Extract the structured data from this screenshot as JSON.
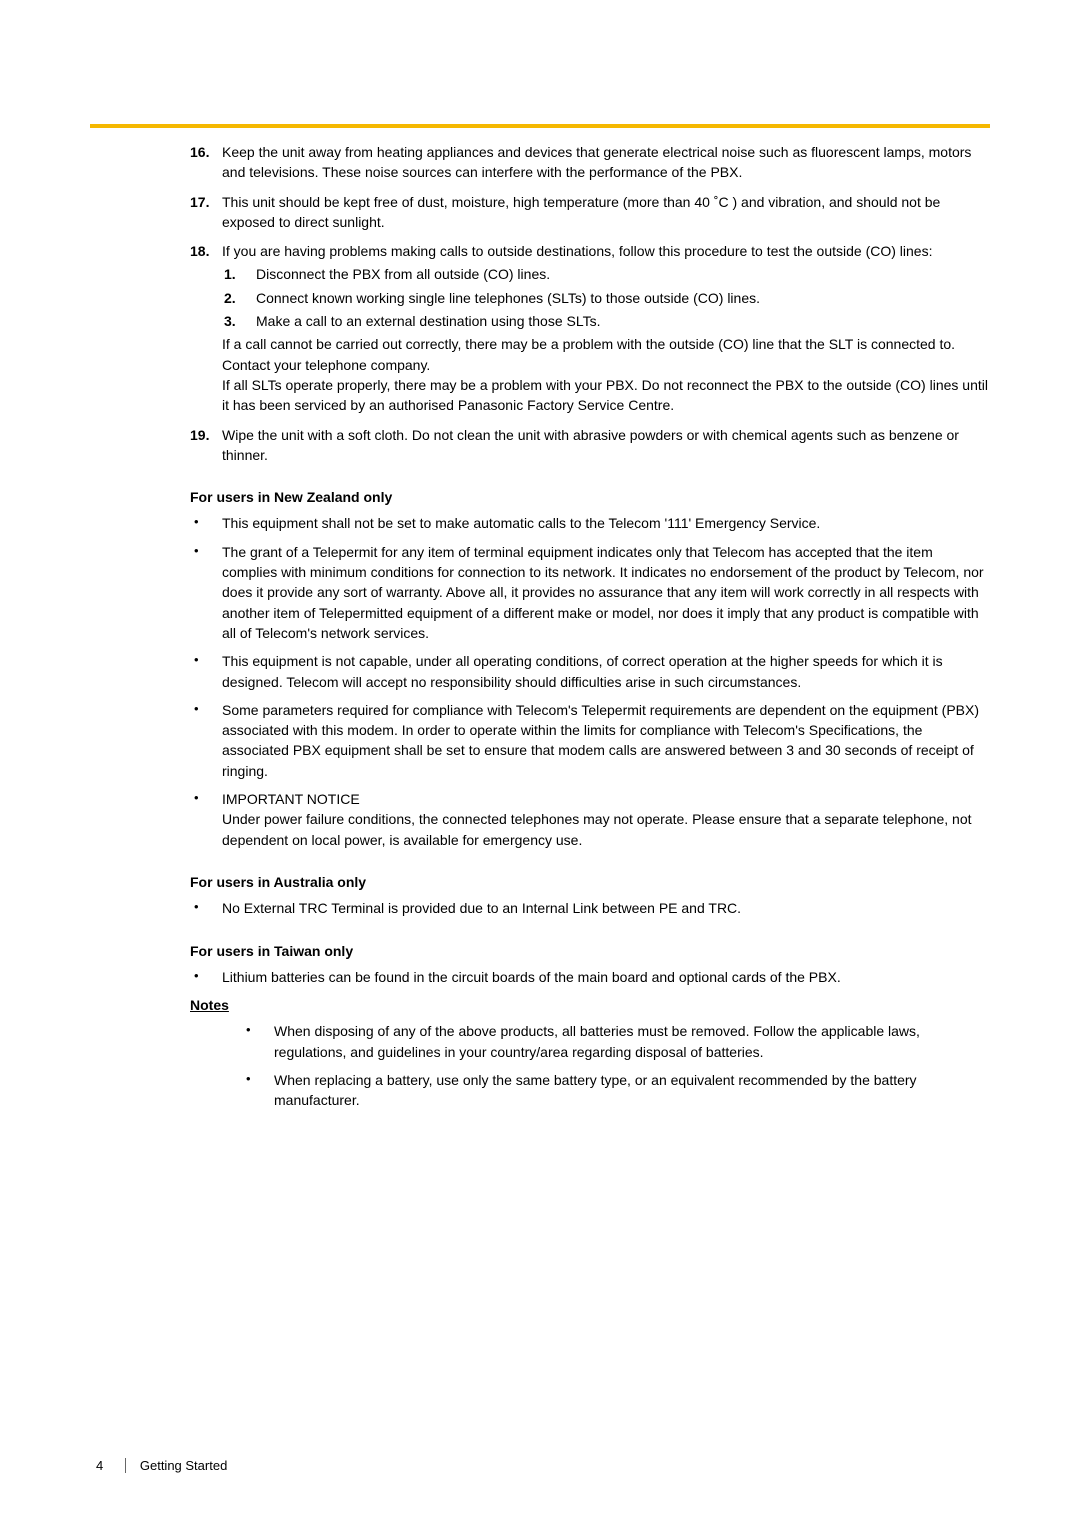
{
  "accent_color": "#f5b800",
  "items": [
    {
      "n": "16.",
      "text": "Keep the unit away from heating appliances and devices that generate electrical noise such as fluorescent lamps, motors and televisions. These noise sources can interfere with the performance of the PBX."
    },
    {
      "n": "17.",
      "text": "This unit should be kept free of dust, moisture, high temperature (more than 40 ˚C ) and vibration, and should not be exposed to direct sunlight."
    },
    {
      "n": "18.",
      "text": "If you are having problems making calls to outside destinations, follow this procedure to test the outside (CO) lines:",
      "sub": [
        {
          "sn": "1.",
          "stext": "Disconnect the PBX from all outside (CO) lines."
        },
        {
          "sn": "2.",
          "stext": "Connect known working single line telephones (SLTs) to those outside (CO) lines."
        },
        {
          "sn": "3.",
          "stext": "Make a call to an external destination using those SLTs."
        }
      ],
      "tail1": "If a call cannot be carried out correctly, there may be a problem with the outside (CO) line that the SLT is connected to. Contact your telephone company.",
      "tail2": "If all SLTs operate properly, there may be a problem with your PBX. Do not reconnect the PBX to the outside (CO) lines until it has been serviced by an authorised Panasonic Factory Service Centre."
    },
    {
      "n": "19.",
      "text": "Wipe the unit with a soft cloth. Do not clean the unit with abrasive powders or with chemical agents such as benzene or thinner."
    }
  ],
  "sections": [
    {
      "heading": "For users in New Zealand only",
      "bullets": [
        "This equipment shall not be set to make automatic calls to the Telecom '111' Emergency Service.",
        "The grant of a Telepermit for any item of terminal equipment indicates only that Telecom has accepted that the item complies with minimum conditions for connection to its network. It indicates no endorsement of the product by Telecom, nor does it provide any sort of warranty. Above all, it provides no assurance that any item will work correctly in all respects with another item of Telepermitted equipment of a different make or model, nor does it imply that any product is compatible with all of Telecom's network services.",
        "This equipment is not capable, under all operating conditions, of correct operation at the higher speeds for which it is designed. Telecom will accept no responsibility should difficulties arise in such circumstances.",
        "Some parameters required for compliance with Telecom's Telepermit requirements are dependent on the equipment (PBX) associated with this modem. In order to operate within the limits for compliance with Telecom's Specifications, the associated PBX equipment shall be set to ensure that modem calls are answered between 3 and 30 seconds of receipt of ringing.",
        "IMPORTANT NOTICE\nUnder power failure conditions, the connected telephones may not operate. Please ensure that a separate telephone, not dependent on local power, is available for emergency use."
      ]
    },
    {
      "heading": "For users in Australia only",
      "bullets": [
        "No External TRC Terminal is provided due to an Internal Link between PE and TRC."
      ]
    },
    {
      "heading": "For users in Taiwan only",
      "bullets": [
        "Lithium batteries can be found in the circuit boards of the main board and optional cards of the PBX."
      ]
    }
  ],
  "notes_heading": "Notes",
  "notes": [
    "When disposing of any of the above products, all batteries must be removed. Follow the applicable laws, regulations, and guidelines in your country/area regarding disposal of batteries.",
    "When replacing a battery, use only the same battery type, or an equivalent recommended by the battery manufacturer."
  ],
  "footer": {
    "page": "4",
    "label": "Getting Started"
  }
}
